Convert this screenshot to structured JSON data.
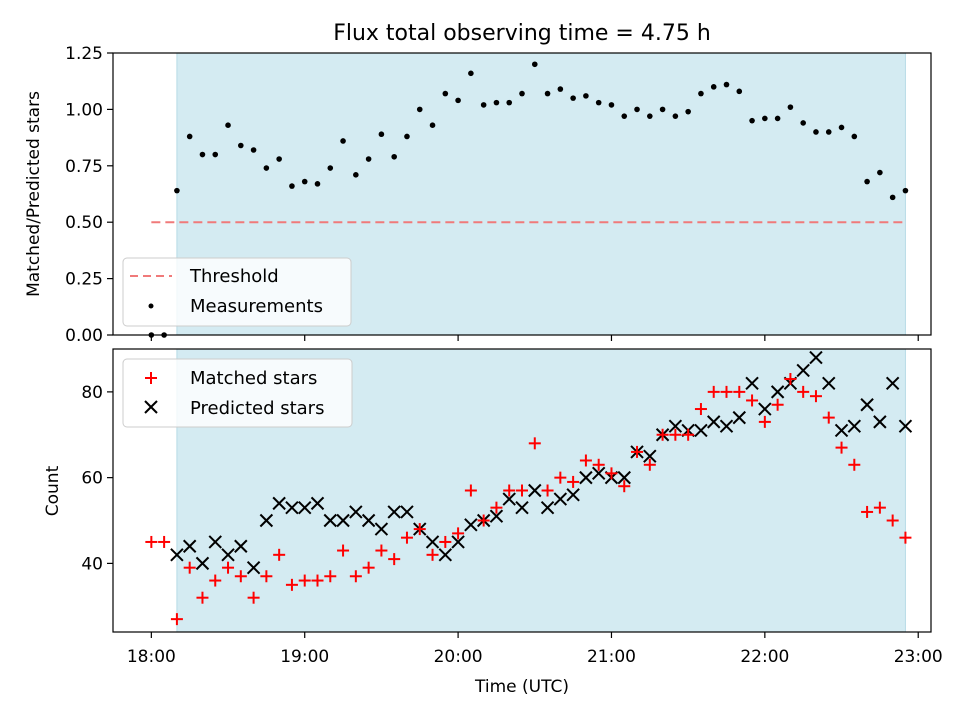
{
  "chart_data": [
    {
      "type": "scatter",
      "title": "Flux total observing time = 4.75 h",
      "ylabel": "Matched/Predicted stars",
      "xlabel": "",
      "ylim": [
        0,
        1.25
      ],
      "yticks": [
        0,
        0.25,
        0.5,
        0.75,
        1.0,
        1.25
      ],
      "ytick_labels": [
        "0.00",
        "0.25",
        "0.50",
        "0.75",
        "1.00",
        "1.25"
      ],
      "shaded_interval": [
        "18:10",
        "22:55"
      ],
      "shade_color": "#d4ebf2",
      "threshold": {
        "name": "Threshold",
        "value": 0.5,
        "x_range": [
          "18:00",
          "22:55"
        ],
        "color": "#f07a7a"
      },
      "series": [
        {
          "name": "Measurements",
          "color": "#000000",
          "x": [
            "18:00",
            "18:05",
            "18:10",
            "18:15",
            "18:20",
            "18:25",
            "18:30",
            "18:35",
            "18:40",
            "18:45",
            "18:50",
            "18:55",
            "19:00",
            "19:05",
            "19:10",
            "19:15",
            "19:20",
            "19:25",
            "19:30",
            "19:35",
            "19:40",
            "19:45",
            "19:50",
            "19:55",
            "20:00",
            "20:05",
            "20:10",
            "20:15",
            "20:20",
            "20:25",
            "20:30",
            "20:35",
            "20:40",
            "20:45",
            "20:50",
            "20:55",
            "21:00",
            "21:05",
            "21:10",
            "21:15",
            "21:20",
            "21:25",
            "21:30",
            "21:35",
            "21:40",
            "21:45",
            "21:50",
            "21:55",
            "22:00",
            "22:05",
            "22:10",
            "22:15",
            "22:20",
            "22:25",
            "22:30",
            "22:35",
            "22:40",
            "22:45",
            "22:50",
            "22:55"
          ],
          "y": [
            0.0,
            0.0,
            0.64,
            0.88,
            0.8,
            0.8,
            0.93,
            0.84,
            0.82,
            0.74,
            0.78,
            0.66,
            0.68,
            0.67,
            0.74,
            0.86,
            0.71,
            0.78,
            0.89,
            0.79,
            0.88,
            1.0,
            0.93,
            1.07,
            1.04,
            1.16,
            1.02,
            1.03,
            1.03,
            1.07,
            1.2,
            1.07,
            1.09,
            1.05,
            1.06,
            1.03,
            1.02,
            0.97,
            1.0,
            0.97,
            1.0,
            0.97,
            0.99,
            1.07,
            1.1,
            1.11,
            1.08,
            0.95,
            0.96,
            0.96,
            1.01,
            0.94,
            0.9,
            0.9,
            0.92,
            0.88,
            0.68,
            0.72,
            0.61,
            0.64
          ]
        }
      ],
      "legend": "lower-left"
    },
    {
      "type": "scatter",
      "title": "",
      "ylabel": "Count",
      "xlabel": "Time (UTC)",
      "ylim": [
        24,
        90
      ],
      "yticks": [
        40,
        60,
        80
      ],
      "ytick_labels": [
        "40",
        "60",
        "80"
      ],
      "xlim": [
        "17:45",
        "23:05"
      ],
      "xticks": [
        "18:00",
        "19:00",
        "20:00",
        "21:00",
        "22:00",
        "23:00"
      ],
      "xtick_labels": [
        "18:00",
        "19:00",
        "20:00",
        "21:00",
        "22:00",
        "23:00"
      ],
      "shaded_interval": [
        "18:10",
        "22:55"
      ],
      "shade_color": "#d4ebf2",
      "series": [
        {
          "name": "Matched stars",
          "marker": "plus",
          "color": "#ff0000",
          "x": [
            "18:00",
            "18:05",
            "18:10",
            "18:15",
            "18:20",
            "18:25",
            "18:30",
            "18:35",
            "18:40",
            "18:45",
            "18:50",
            "18:55",
            "19:00",
            "19:05",
            "19:10",
            "19:15",
            "19:20",
            "19:25",
            "19:30",
            "19:35",
            "19:40",
            "19:45",
            "19:50",
            "19:55",
            "20:00",
            "20:05",
            "20:10",
            "20:15",
            "20:20",
            "20:25",
            "20:30",
            "20:35",
            "20:40",
            "20:45",
            "20:50",
            "20:55",
            "21:00",
            "21:05",
            "21:10",
            "21:15",
            "21:20",
            "21:25",
            "21:30",
            "21:35",
            "21:40",
            "21:45",
            "21:50",
            "21:55",
            "22:00",
            "22:05",
            "22:10",
            "22:15",
            "22:20",
            "22:25",
            "22:30",
            "22:35",
            "22:40",
            "22:45",
            "22:50",
            "22:55"
          ],
          "y": [
            45,
            45,
            27,
            39,
            32,
            36,
            39,
            37,
            32,
            37,
            42,
            35,
            36,
            36,
            37,
            43,
            37,
            39,
            43,
            41,
            46,
            48,
            42,
            45,
            47,
            57,
            50,
            53,
            57,
            57,
            68,
            57,
            60,
            59,
            64,
            63,
            61,
            58,
            66,
            63,
            70,
            70,
            70,
            76,
            80,
            80,
            80,
            78,
            73,
            77,
            83,
            80,
            79,
            74,
            67,
            63,
            52,
            53,
            50,
            46
          ]
        },
        {
          "name": "Predicted stars",
          "marker": "x",
          "color": "#000000",
          "x": [
            "18:10",
            "18:15",
            "18:20",
            "18:25",
            "18:30",
            "18:35",
            "18:40",
            "18:45",
            "18:50",
            "18:55",
            "19:00",
            "19:05",
            "19:10",
            "19:15",
            "19:20",
            "19:25",
            "19:30",
            "19:35",
            "19:40",
            "19:45",
            "19:50",
            "19:55",
            "20:00",
            "20:05",
            "20:10",
            "20:15",
            "20:20",
            "20:25",
            "20:30",
            "20:35",
            "20:40",
            "20:45",
            "20:50",
            "20:55",
            "21:00",
            "21:05",
            "21:10",
            "21:15",
            "21:20",
            "21:25",
            "21:30",
            "21:35",
            "21:40",
            "21:45",
            "21:50",
            "21:55",
            "22:00",
            "22:05",
            "22:10",
            "22:15",
            "22:20",
            "22:25",
            "22:30",
            "22:35",
            "22:40",
            "22:45",
            "22:50",
            "22:55"
          ],
          "y": [
            42,
            44,
            40,
            45,
            42,
            44,
            39,
            50,
            54,
            53,
            53,
            54,
            50,
            50,
            52,
            50,
            48,
            52,
            52,
            48,
            45,
            42,
            45,
            49,
            50,
            51,
            55,
            53,
            57,
            53,
            55,
            56,
            60,
            61,
            60,
            60,
            66,
            65,
            70,
            72,
            71,
            71,
            73,
            72,
            74,
            82,
            76,
            80,
            82,
            85,
            88,
            82,
            71,
            72,
            77,
            73,
            82,
            72
          ]
        }
      ],
      "legend": "upper-left"
    }
  ]
}
